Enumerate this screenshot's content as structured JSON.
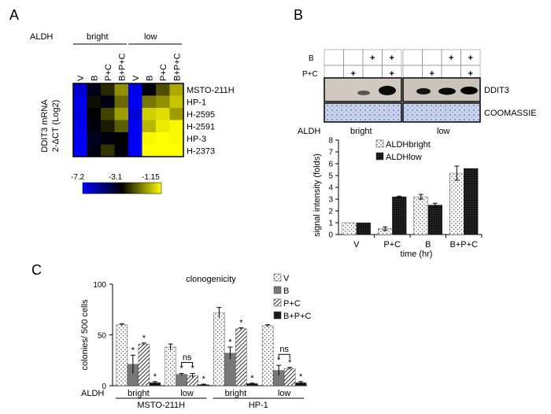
{
  "panels": {
    "A": "A",
    "B": "B",
    "C": "C"
  },
  "chart_data": [
    {
      "type": "heatmap",
      "panel": "A",
      "group_label": "ALDH",
      "groups": [
        "bright",
        "low"
      ],
      "columns": [
        "V",
        "B",
        "P+C",
        "B+P+C",
        "V",
        "B",
        "P+C",
        "B+P+C"
      ],
      "rows": [
        "MSTO-211H",
        "HP-1",
        "H-2595",
        "H-2591",
        "HP-3",
        "H-2373"
      ],
      "ylabel": "DDIT3 mRNA\n2-ΔCT (Log2)",
      "scale_ticks": [
        "-7.2",
        "-3.1",
        "-1.15"
      ],
      "scale_range": [
        -7.2,
        -1.15
      ],
      "colors": {
        "low": "#0000ff",
        "mid": "#000000",
        "high": "#ffff00"
      },
      "values": [
        [
          -6.5,
          -3.5,
          -2.8,
          -2.0,
          -6.8,
          -3.2,
          -2.5,
          -1.8
        ],
        [
          -6.9,
          -3.0,
          -3.4,
          -2.3,
          -7.0,
          -2.2,
          -2.0,
          -1.6
        ],
        [
          -6.8,
          -3.1,
          -2.6,
          -1.9,
          -6.6,
          -1.5,
          -1.4,
          -1.9
        ],
        [
          -6.9,
          -3.3,
          -2.9,
          -2.4,
          -7.0,
          -1.7,
          -1.3,
          -1.2
        ],
        [
          -7.0,
          -3.6,
          -3.3,
          -3.1,
          -7.0,
          -1.2,
          -1.15,
          -1.2
        ],
        [
          -7.1,
          -3.4,
          -2.7,
          -3.3,
          -7.2,
          -1.15,
          -1.15,
          -1.15
        ]
      ]
    },
    {
      "type": "bar",
      "panel": "B",
      "blot_header": {
        "rows": [
          "B",
          "P+C"
        ],
        "marks": [
          [
            [
              "",
              "",
              "+",
              "+"
            ],
            [
              "",
              "",
              "+",
              "+"
            ]
          ],
          [
            [
              "",
              "+",
              "",
              "+"
            ],
            [
              "",
              "+",
              "",
              "+"
            ]
          ]
        ],
        "mark_symbol": "+"
      },
      "blot_labels": [
        "DDIT3",
        "COOMASSIE"
      ],
      "group_label": "ALDH",
      "groups": [
        "bright",
        "low"
      ],
      "categories": [
        "V",
        "P+C",
        "B",
        "B+P+C"
      ],
      "series": [
        {
          "name": "ALDHbright",
          "values": [
            1.0,
            0.5,
            3.2,
            5.2
          ],
          "errors": [
            0,
            0.15,
            0.2,
            0.6
          ]
        },
        {
          "name": "ALDHlow",
          "values": [
            1.0,
            3.2,
            2.5,
            5.6
          ],
          "errors": [
            0,
            0.05,
            0.15,
            0
          ]
        }
      ],
      "ylabel": "signal intensity (folds)",
      "xlabel": "time (hr)",
      "ylim": [
        0,
        8
      ],
      "yticks": [
        "0",
        "1",
        "2",
        "3",
        "4",
        "5",
        "6",
        "7",
        "8"
      ],
      "legend": "top-left"
    },
    {
      "type": "bar",
      "panel": "C",
      "title": "clonogenicity",
      "ylabel": "colonies/ 500 cells",
      "ylim": [
        0,
        100
      ],
      "yticks": [
        "0",
        "50",
        "100"
      ],
      "xlabel_prefix": "ALDH",
      "subgroups": [
        "bright",
        "low",
        "bright",
        "low"
      ],
      "cell_lines": [
        "MSTO-211H",
        "HP-1"
      ],
      "series": [
        {
          "name": "V",
          "values": [
            60,
            38,
            72,
            59
          ],
          "errors": [
            1,
            3,
            5,
            1
          ]
        },
        {
          "name": "B",
          "values": [
            21,
            11,
            32,
            15
          ],
          "errors": [
            9,
            1,
            6,
            5
          ]
        },
        {
          "name": "P+C",
          "values": [
            41,
            10,
            56,
            17
          ],
          "errors": [
            1,
            2,
            1,
            1
          ]
        },
        {
          "name": "B+P+C",
          "values": [
            3,
            1,
            2,
            3
          ],
          "errors": [
            1,
            0.5,
            0.5,
            1
          ]
        }
      ],
      "significance": [
        [
          "",
          "",
          "",
          ""
        ],
        [
          "*",
          "*",
          "*",
          "*"
        ],
        [
          "*",
          "*",
          "*",
          "*"
        ],
        [
          "*",
          "*",
          "*",
          "*"
        ]
      ],
      "annotations": {
        "ns": "ns",
        "star": "*"
      },
      "legend": "top-right"
    }
  ]
}
